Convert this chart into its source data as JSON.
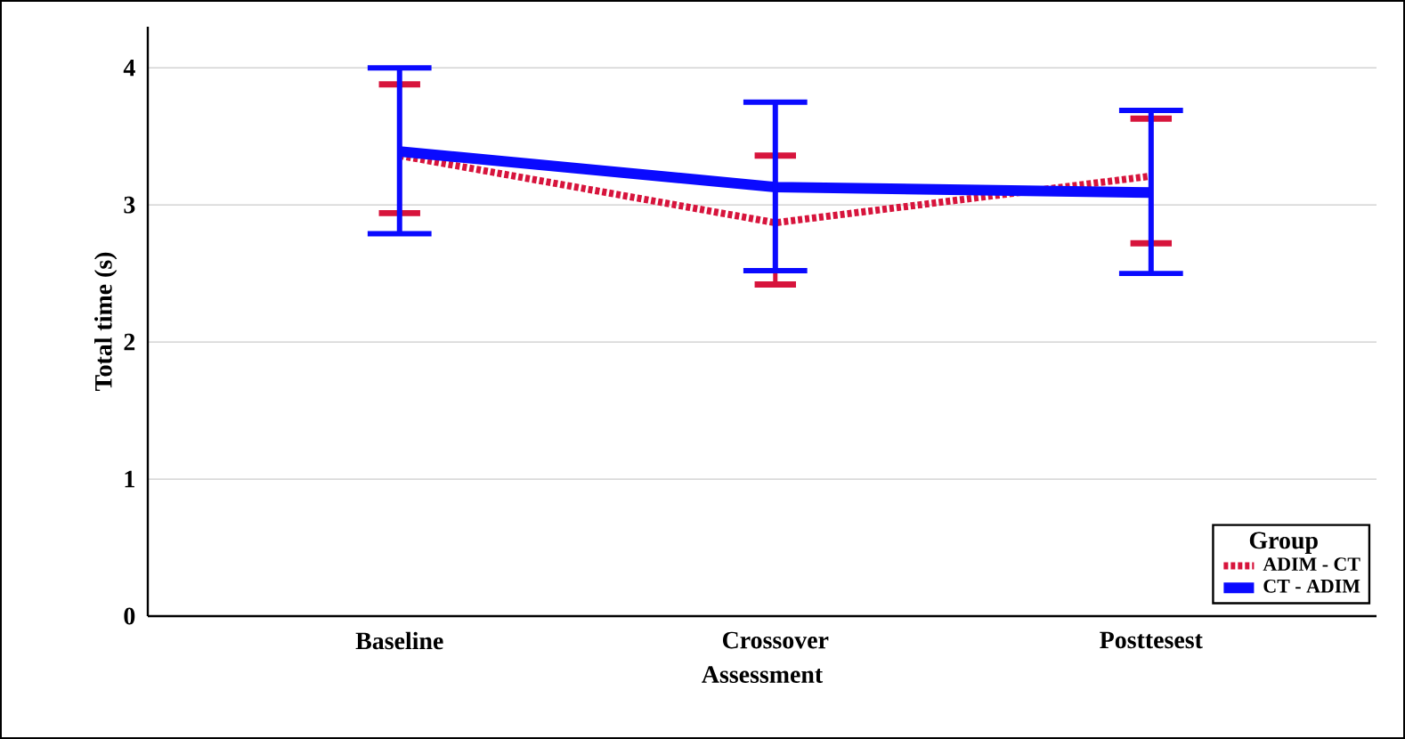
{
  "chart_data": {
    "type": "line",
    "xlabel": "Assessment",
    "ylabel": "Total time (s)",
    "legend_title": "Group",
    "categories": [
      "Baseline",
      "Crossover",
      "Posttesest"
    ],
    "ylim": [
      0,
      4.3
    ],
    "yticks": [
      0,
      1,
      2,
      3,
      4
    ],
    "grid": "y",
    "legend": "bottom right",
    "marker": "none",
    "series": [
      {
        "name": "ADIM - CT",
        "color": "#d7143c",
        "line_style": "dashed",
        "values": [
          3.36,
          2.87,
          3.21
        ],
        "errors": [
          [
            2.94,
            3.88
          ],
          [
            2.42,
            3.36
          ],
          [
            2.72,
            3.63
          ]
        ]
      },
      {
        "name": "CT - ADIM",
        "color": "#0a0aff",
        "line_style": "solid",
        "values": [
          3.39,
          3.13,
          3.09
        ],
        "errors": [
          [
            2.79,
            4.0
          ],
          [
            2.52,
            3.75
          ],
          [
            2.5,
            3.69
          ]
        ]
      }
    ]
  }
}
